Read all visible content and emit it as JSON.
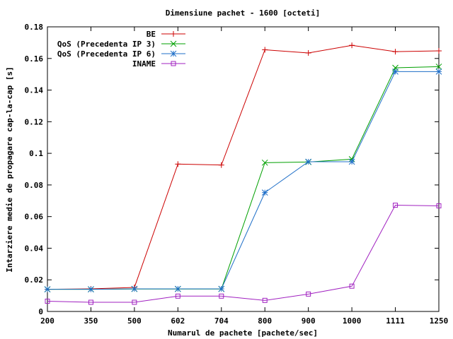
{
  "chart_data": {
    "type": "line",
    "title": "Dimensiune pachet - 1600 [octeti]",
    "xlabel": "Numarul de pachete [pachete/sec]",
    "ylabel": "Intarziere medie de propagare cap-la-cap [s]",
    "categories": [
      "200",
      "350",
      "500",
      "602",
      "704",
      "800",
      "900",
      "1000",
      "1111",
      "1250"
    ],
    "ylim": [
      0,
      0.18
    ],
    "yticks": [
      "0",
      "0.02",
      "0.04",
      "0.06",
      "0.08",
      "0.1",
      "0.12",
      "0.14",
      "0.16",
      "0.18"
    ],
    "grid": false,
    "legend_position": "top-left",
    "series": [
      {
        "name": "BE",
        "color": "#cc0000",
        "marker": "plus",
        "values": [
          0.014,
          0.0143,
          0.0152,
          0.0932,
          0.0926,
          0.1655,
          0.1635,
          0.1683,
          0.1643,
          0.1648
        ]
      },
      {
        "name": "QoS (Precedenta IP 3)",
        "color": "#00a000",
        "marker": "cross",
        "values": [
          0.014,
          0.014,
          0.0142,
          0.0142,
          0.0142,
          0.0941,
          0.0945,
          0.0963,
          0.1541,
          0.1548
        ]
      },
      {
        "name": "QoS (Precedenta IP 6)",
        "color": "#1f6fc8",
        "marker": "star",
        "values": [
          0.014,
          0.014,
          0.0143,
          0.0143,
          0.0143,
          0.0752,
          0.0947,
          0.0947,
          0.1517,
          0.1517
        ]
      },
      {
        "name": "INAME",
        "color": "#a020c0",
        "marker": "square",
        "values": [
          0.0065,
          0.0058,
          0.0058,
          0.0097,
          0.0097,
          0.007,
          0.011,
          0.016,
          0.0672,
          0.0668
        ]
      }
    ]
  }
}
